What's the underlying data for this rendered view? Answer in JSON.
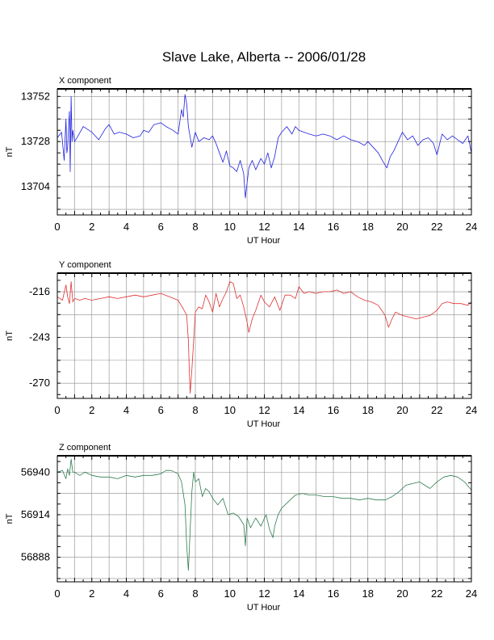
{
  "page": {
    "title": "Slave Lake, Alberta -- 2006/01/28"
  },
  "chart_data": [
    {
      "type": "line",
      "panel_label": "X component",
      "xlabel": "UT Hour",
      "ylabel": "nT",
      "xlim": [
        0,
        24
      ],
      "ylim": [
        13689,
        13756
      ],
      "x_ticks": [
        0,
        2,
        4,
        6,
        8,
        10,
        12,
        14,
        16,
        18,
        20,
        22,
        24
      ],
      "y_ticks": [
        13704,
        13728,
        13752
      ],
      "grid": true,
      "series": [
        {
          "color": "#1f1fe0",
          "x": [
            0.0,
            0.25,
            0.4,
            0.5,
            0.55,
            0.6,
            0.7,
            0.75,
            0.8,
            0.85,
            0.9,
            1.0,
            1.2,
            1.5,
            2.0,
            2.4,
            2.8,
            3.0,
            3.3,
            3.6,
            4.0,
            4.4,
            4.8,
            5.0,
            5.3,
            5.6,
            6.0,
            6.3,
            6.7,
            7.0,
            7.2,
            7.3,
            7.4,
            7.5,
            7.6,
            7.8,
            8.0,
            8.2,
            8.5,
            8.8,
            9.0,
            9.2,
            9.4,
            9.6,
            9.8,
            10.0,
            10.2,
            10.4,
            10.6,
            10.8,
            10.9,
            11.0,
            11.1,
            11.3,
            11.5,
            11.8,
            12.0,
            12.2,
            12.4,
            12.6,
            12.8,
            13.0,
            13.3,
            13.6,
            13.8,
            14.0,
            14.3,
            14.6,
            15.0,
            15.4,
            15.8,
            16.2,
            16.6,
            17.0,
            17.4,
            17.8,
            18.0,
            18.3,
            18.6,
            18.9,
            19.1,
            19.3,
            19.5,
            19.8,
            20.0,
            20.3,
            20.6,
            20.9,
            21.2,
            21.5,
            21.8,
            22.0,
            22.3,
            22.6,
            22.9,
            23.2,
            23.5,
            23.8,
            24.0
          ],
          "values": [
            13730,
            13733,
            13718,
            13740,
            13722,
            13725,
            13744,
            13712,
            13752,
            13728,
            13734,
            13728,
            13731,
            13736,
            13733,
            13729,
            13735,
            13737,
            13732,
            13733,
            13732,
            13730,
            13731,
            13734,
            13733,
            13737,
            13738,
            13736,
            13734,
            13732,
            13745,
            13741,
            13753,
            13748,
            13736,
            13725,
            13733,
            13728,
            13730,
            13729,
            13731,
            13727,
            13722,
            13717,
            13723,
            13715,
            13714,
            13712,
            13718,
            13711,
            13698,
            13706,
            13714,
            13718,
            13713,
            13719,
            13716,
            13722,
            13714,
            13720,
            13730,
            13733,
            13736,
            13732,
            13736,
            13734,
            13733,
            13732,
            13731,
            13732,
            13731,
            13729,
            13731,
            13729,
            13728,
            13726,
            13728,
            13725,
            13722,
            13717,
            13714,
            13720,
            13723,
            13729,
            13733,
            13729,
            13731,
            13726,
            13729,
            13730,
            13727,
            13721,
            13732,
            13729,
            13731,
            13729,
            13727,
            13731,
            13722
          ]
        }
      ]
    },
    {
      "type": "line",
      "panel_label": "Y component",
      "xlabel": "UT Hour",
      "ylabel": "nT",
      "xlim": [
        0,
        24
      ],
      "ylim": [
        -279,
        -205
      ],
      "x_ticks": [
        0,
        2,
        4,
        6,
        8,
        10,
        12,
        14,
        16,
        18,
        20,
        22,
        24
      ],
      "y_ticks": [
        -270,
        -243,
        -216
      ],
      "grid": true,
      "series": [
        {
          "color": "#e03030",
          "x": [
            0.0,
            0.3,
            0.5,
            0.6,
            0.7,
            0.8,
            0.9,
            1.0,
            1.3,
            1.6,
            2.0,
            2.5,
            3.0,
            3.5,
            4.0,
            4.5,
            5.0,
            5.5,
            6.0,
            6.5,
            7.0,
            7.3,
            7.5,
            7.6,
            7.65,
            7.7,
            7.8,
            7.9,
            8.0,
            8.2,
            8.4,
            8.6,
            8.8,
            9.0,
            9.2,
            9.4,
            9.6,
            9.8,
            10.0,
            10.2,
            10.4,
            10.6,
            10.8,
            11.0,
            11.1,
            11.3,
            11.5,
            11.8,
            12.0,
            12.3,
            12.6,
            12.9,
            13.2,
            13.5,
            13.8,
            14.0,
            14.3,
            14.6,
            15.0,
            15.4,
            15.8,
            16.2,
            16.6,
            17.0,
            17.4,
            17.8,
            18.2,
            18.6,
            19.0,
            19.2,
            19.4,
            19.6,
            20.0,
            20.4,
            20.8,
            21.2,
            21.6,
            22.0,
            22.3,
            22.6,
            23.0,
            23.4,
            23.8,
            24.0
          ],
          "values": [
            -219,
            -221,
            -212,
            -219,
            -223,
            -210,
            -222,
            -220,
            -221,
            -220,
            -221,
            -220,
            -219,
            -220,
            -219,
            -218,
            -219,
            -218,
            -217,
            -219,
            -221,
            -226,
            -230,
            -245,
            -262,
            -276,
            -262,
            -245,
            -228,
            -225,
            -226,
            -218,
            -222,
            -228,
            -217,
            -225,
            -220,
            -216,
            -210,
            -211,
            -220,
            -218,
            -225,
            -234,
            -240,
            -232,
            -227,
            -218,
            -222,
            -225,
            -219,
            -227,
            -218,
            -218,
            -220,
            -213,
            -217,
            -216,
            -217,
            -216,
            -216,
            -215,
            -217,
            -216,
            -219,
            -221,
            -222,
            -224,
            -230,
            -237,
            -232,
            -228,
            -230,
            -231,
            -232,
            -231,
            -230,
            -227,
            -223,
            -222,
            -223,
            -223,
            -224,
            -222
          ]
        }
      ]
    },
    {
      "type": "line",
      "panel_label": "Z component",
      "xlabel": "UT Hour",
      "ylabel": "nT",
      "xlim": [
        0,
        24
      ],
      "ylim": [
        56873,
        56950
      ],
      "x_ticks": [
        0,
        2,
        4,
        6,
        8,
        10,
        12,
        14,
        16,
        18,
        20,
        22,
        24
      ],
      "y_ticks": [
        56888,
        56914,
        56940
      ],
      "grid": true,
      "series": [
        {
          "color": "#2e7d4f",
          "x": [
            0.0,
            0.3,
            0.5,
            0.6,
            0.7,
            0.8,
            0.9,
            1.0,
            1.3,
            1.6,
            2.0,
            2.5,
            3.0,
            3.5,
            4.0,
            4.5,
            5.0,
            5.5,
            6.0,
            6.3,
            6.6,
            7.0,
            7.2,
            7.4,
            7.5,
            7.6,
            7.7,
            7.8,
            7.9,
            8.0,
            8.2,
            8.4,
            8.6,
            8.8,
            9.0,
            9.3,
            9.6,
            9.9,
            10.2,
            10.5,
            10.8,
            10.9,
            11.0,
            11.2,
            11.5,
            11.8,
            12.1,
            12.3,
            12.5,
            12.6,
            12.8,
            13.0,
            13.4,
            13.8,
            14.2,
            14.6,
            15.0,
            15.5,
            16.0,
            16.5,
            17.0,
            17.5,
            18.0,
            18.5,
            19.0,
            19.4,
            19.8,
            20.2,
            20.6,
            21.0,
            21.3,
            21.6,
            22.0,
            22.4,
            22.8,
            23.2,
            23.6,
            24.0
          ],
          "values": [
            56940,
            56941,
            56936,
            56942,
            56938,
            56948,
            56940,
            56940,
            56938,
            56940,
            56938,
            56937,
            56937,
            56936,
            56938,
            56937,
            56938,
            56938,
            56939,
            56941,
            56941,
            56939,
            56934,
            56920,
            56895,
            56880,
            56905,
            56928,
            56940,
            56934,
            56936,
            56925,
            56930,
            56928,
            56924,
            56920,
            56924,
            56914,
            56915,
            56913,
            56908,
            56895,
            56912,
            56906,
            56912,
            56907,
            56914,
            56905,
            56900,
            56907,
            56914,
            56918,
            56922,
            56926,
            56927,
            56926,
            56926,
            56925,
            56925,
            56924,
            56924,
            56923,
            56924,
            56923,
            56923,
            56925,
            56928,
            56932,
            56933,
            56934,
            56932,
            56930,
            56934,
            56937,
            56938,
            56937,
            56934,
            56929
          ]
        }
      ]
    }
  ]
}
